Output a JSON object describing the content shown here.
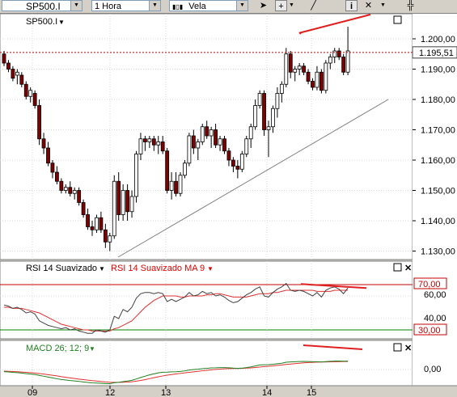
{
  "toolbar": {
    "symbol_value": "SP500.I",
    "interval_value": "1 Hora",
    "chart_style_value": "Vela",
    "tool_buttons": [
      {
        "name": "cursor-arrow-icon",
        "glyph": "➤"
      },
      {
        "name": "crosshair-icon",
        "glyph": "+"
      },
      {
        "name": "draw-line-icon",
        "glyph": "╱"
      },
      {
        "name": "info-icon",
        "glyph": "i"
      },
      {
        "name": "delete-icon",
        "glyph": "✕"
      },
      {
        "name": "more-icon",
        "glyph": "▾"
      }
    ]
  },
  "price_panel": {
    "symbol_label": "SP500.I",
    "current_price_label": "1.195,51",
    "current_price": 1195.51,
    "y_ticks": [
      "1.200,00",
      "1.190,00",
      "1.180,00",
      "1.170,00",
      "1.160,00",
      "1.150,00",
      "1.140,00",
      "1.130,00"
    ],
    "y_tick_values": [
      1200,
      1190,
      1180,
      1170,
      1160,
      1150,
      1140,
      1130
    ]
  },
  "rsi_panel": {
    "title": "RSI 14 Suavizado",
    "ma_title": "RSI 14 Suavizado MA 9",
    "upper_level_label": "70,00",
    "lower_level_label": "30,00",
    "y_ticks": [
      "60,00",
      "40,00"
    ]
  },
  "macd_panel": {
    "title": "MACD 26; 12; 9",
    "zero_label": "0,00"
  },
  "x_axis": {
    "labels": [
      "09",
      "12",
      "13",
      "14",
      "15"
    ]
  },
  "colors": {
    "bull": "#ffffff",
    "bear": "#800000",
    "price_line": "#c00000",
    "rsi": "#404040",
    "rsi_ma": "#e03030",
    "level": "#c00000",
    "level_low": "#008000",
    "macd": "#208020",
    "macd_signal": "#e03030",
    "drawn_line": "#e02020"
  },
  "chart_data": [
    {
      "type": "candlestick",
      "title": "SP500.I",
      "ylim": [
        1127,
        1212
      ],
      "x": [
        "09",
        "12",
        "13",
        "14",
        "15"
      ],
      "ohlc": [
        [
          1195,
          1196,
          1191,
          1192
        ],
        [
          1192,
          1193,
          1189,
          1190
        ],
        [
          1190,
          1191,
          1186,
          1187
        ],
        [
          1188,
          1190,
          1185,
          1189
        ],
        [
          1188,
          1189,
          1184,
          1185
        ],
        [
          1185,
          1186,
          1180,
          1181
        ],
        [
          1181,
          1184,
          1179,
          1183
        ],
        [
          1182,
          1183,
          1177,
          1178
        ],
        [
          1178,
          1180,
          1165,
          1167
        ],
        [
          1167,
          1169,
          1162,
          1164
        ],
        [
          1164,
          1166,
          1158,
          1159
        ],
        [
          1159,
          1160,
          1154,
          1156
        ],
        [
          1156,
          1158,
          1152,
          1153
        ],
        [
          1153,
          1154,
          1149,
          1150
        ],
        [
          1150,
          1152,
          1149,
          1151
        ],
        [
          1151,
          1153,
          1148,
          1149
        ],
        [
          1149,
          1151,
          1147,
          1150
        ],
        [
          1150,
          1151,
          1145,
          1146
        ],
        [
          1146,
          1147,
          1141,
          1142
        ],
        [
          1142,
          1144,
          1137,
          1138
        ],
        [
          1138,
          1140,
          1135,
          1137
        ],
        [
          1137,
          1142,
          1136,
          1141
        ],
        [
          1141,
          1143,
          1136,
          1137
        ],
        [
          1137,
          1139,
          1131,
          1133
        ],
        [
          1133,
          1136,
          1130,
          1135
        ],
        [
          1135,
          1155,
          1134,
          1153
        ],
        [
          1153,
          1156,
          1140,
          1142
        ],
        [
          1142,
          1152,
          1140,
          1150
        ],
        [
          1150,
          1152,
          1140,
          1143
        ],
        [
          1143,
          1150,
          1141,
          1148
        ],
        [
          1148,
          1163,
          1146,
          1162
        ],
        [
          1162,
          1169,
          1160,
          1167
        ],
        [
          1167,
          1168,
          1163,
          1166
        ],
        [
          1166,
          1168,
          1164,
          1167
        ],
        [
          1167,
          1168,
          1163,
          1165
        ],
        [
          1165,
          1168,
          1162,
          1166
        ],
        [
          1166,
          1168,
          1162,
          1163
        ],
        [
          1163,
          1164,
          1149,
          1150
        ],
        [
          1150,
          1156,
          1147,
          1153
        ],
        [
          1153,
          1156,
          1148,
          1149
        ],
        [
          1149,
          1156,
          1148,
          1155
        ],
        [
          1155,
          1160,
          1154,
          1159
        ],
        [
          1159,
          1169,
          1158,
          1168
        ],
        [
          1168,
          1170,
          1162,
          1164
        ],
        [
          1164,
          1167,
          1160,
          1166
        ],
        [
          1166,
          1172,
          1165,
          1171
        ],
        [
          1171,
          1173,
          1167,
          1168
        ],
        [
          1168,
          1171,
          1164,
          1170
        ],
        [
          1170,
          1172,
          1164,
          1165
        ],
        [
          1165,
          1168,
          1163,
          1167
        ],
        [
          1167,
          1168,
          1162,
          1163
        ],
        [
          1163,
          1164,
          1158,
          1160
        ],
        [
          1160,
          1161,
          1156,
          1158
        ],
        [
          1158,
          1160,
          1154,
          1157
        ],
        [
          1157,
          1163,
          1156,
          1162
        ],
        [
          1162,
          1168,
          1161,
          1167
        ],
        [
          1167,
          1172,
          1164,
          1171
        ],
        [
          1171,
          1180,
          1170,
          1178
        ],
        [
          1178,
          1183,
          1177,
          1182
        ],
        [
          1182,
          1183,
          1168,
          1170
        ],
        [
          1170,
          1173,
          1161,
          1171
        ],
        [
          1171,
          1178,
          1169,
          1177
        ],
        [
          1177,
          1184,
          1174,
          1182
        ],
        [
          1182,
          1186,
          1179,
          1185
        ],
        [
          1185,
          1197,
          1184,
          1195
        ],
        [
          1195,
          1196,
          1187,
          1189
        ],
        [
          1189,
          1191,
          1186,
          1190
        ],
        [
          1190,
          1192,
          1188,
          1191
        ],
        [
          1191,
          1192,
          1188,
          1189
        ],
        [
          1189,
          1190,
          1185,
          1186
        ],
        [
          1186,
          1187,
          1183,
          1184
        ],
        [
          1184,
          1191,
          1183,
          1189
        ],
        [
          1189,
          1190,
          1182,
          1183
        ],
        [
          1183,
          1193,
          1182,
          1192
        ],
        [
          1192,
          1195,
          1190,
          1194
        ],
        [
          1194,
          1197,
          1192,
          1196
        ],
        [
          1196,
          1197,
          1193,
          1194
        ],
        [
          1194,
          1195,
          1188,
          1189
        ],
        [
          1189,
          1204,
          1188,
          1196
        ]
      ]
    },
    {
      "type": "line",
      "title": "RSI 14 Suavizado",
      "ylim": [
        0,
        100
      ],
      "series": [
        {
          "name": "RSI 14 Suavizado",
          "values": [
            52,
            51,
            49,
            50,
            48,
            45,
            46,
            44,
            38,
            36,
            34,
            33,
            32,
            31,
            32,
            30,
            31,
            29,
            28,
            27,
            27,
            30,
            29,
            28,
            30,
            42,
            40,
            48,
            46,
            50,
            58,
            62,
            63,
            63,
            62,
            63,
            62,
            55,
            57,
            55,
            57,
            59,
            63,
            60,
            61,
            64,
            62,
            63,
            60,
            61,
            59,
            56,
            54,
            55,
            58,
            61,
            63,
            66,
            68,
            60,
            59,
            63,
            66,
            68,
            71,
            65,
            64,
            65,
            64,
            62,
            60,
            63,
            59,
            65,
            67,
            68,
            66,
            62,
            67
          ]
        },
        {
          "name": "RSI 14 Suavizado MA 9",
          "values": [
            50,
            50,
            49,
            49,
            49,
            48,
            47,
            46,
            45,
            43,
            41,
            39,
            37,
            35,
            34,
            33,
            32,
            31,
            30,
            30,
            29,
            29,
            29,
            29,
            29,
            31,
            32,
            34,
            36,
            38,
            42,
            46,
            50,
            53,
            56,
            58,
            60,
            60,
            60,
            60,
            59,
            59,
            60,
            60,
            60,
            60,
            61,
            61,
            62,
            62,
            61,
            60,
            59,
            59,
            59,
            59,
            60,
            61,
            62,
            62,
            62,
            63,
            63,
            64,
            65,
            65,
            65,
            65,
            65,
            65,
            65,
            64,
            64,
            64,
            64,
            65,
            65,
            65,
            65
          ]
        }
      ],
      "levels": [
        70,
        30
      ]
    },
    {
      "type": "line",
      "title": "MACD 26; 12; 9",
      "series": [
        {
          "name": "MACD",
          "values": [
            -2,
            -2.3,
            -2.7,
            -3,
            -3.4,
            -3.9,
            -4.3,
            -4.8,
            -5.6,
            -6.4,
            -7.2,
            -8,
            -8.8,
            -9.5,
            -10,
            -10.5,
            -10.9,
            -11.3,
            -11.8,
            -12.3,
            -12.7,
            -12.9,
            -13.1,
            -13.4,
            -13.5,
            -12.6,
            -12.2,
            -11.5,
            -11,
            -10.3,
            -9,
            -7.6,
            -6.3,
            -5.1,
            -4.1,
            -3.2,
            -2.6,
            -2.5,
            -2.2,
            -2.1,
            -1.8,
            -1.3,
            -0.5,
            0,
            0.3,
            0.8,
            1.1,
            1.5,
            1.6,
            1.8,
            1.8,
            1.6,
            1.3,
            1.1,
            1.3,
            1.8,
            2.5,
            3.4,
            4.3,
            4.5,
            4.6,
            5,
            5.5,
            6,
            6.9,
            7.2,
            7.4,
            7.6,
            7.7,
            7.6,
            7.4,
            7.4,
            7.2,
            7.5,
            7.8,
            8,
            8.1,
            7.9,
            8
          ]
        },
        {
          "name": "Signal",
          "values": [
            -1.5,
            -1.7,
            -1.9,
            -2.1,
            -2.4,
            -2.7,
            -3,
            -3.4,
            -3.8,
            -4.3,
            -4.9,
            -5.5,
            -6.1,
            -6.8,
            -7.4,
            -8,
            -8.6,
            -9.1,
            -9.6,
            -10.1,
            -10.6,
            -11,
            -11.4,
            -11.8,
            -12.1,
            -12.2,
            -12.2,
            -12.1,
            -11.9,
            -11.6,
            -11.1,
            -10.4,
            -9.6,
            -8.7,
            -7.8,
            -6.9,
            -6.1,
            -5.4,
            -4.8,
            -4.2,
            -3.7,
            -3.2,
            -2.7,
            -2.2,
            -1.7,
            -1.2,
            -0.8,
            -0.3,
            0.1,
            0.4,
            0.7,
            0.9,
            1,
            1,
            1.1,
            1.3,
            1.5,
            1.9,
            2.3,
            2.8,
            3.1,
            3.5,
            3.9,
            4.3,
            4.8,
            5.2,
            5.6,
            6,
            6.3,
            6.6,
            6.8,
            7,
            7.1,
            7.2,
            7.3,
            7.4,
            7.5,
            7.6,
            7.6
          ]
        }
      ]
    }
  ]
}
